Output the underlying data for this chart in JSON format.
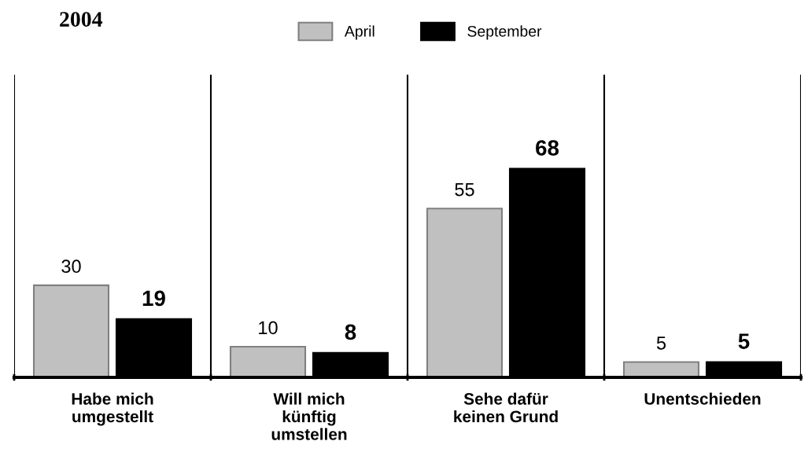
{
  "chart_data": {
    "type": "bar",
    "title": "2004",
    "categories": [
      "Habe mich\numgestellt",
      "Will mich\nkünftig\numstellen",
      "Sehe dafür\nkeinen Grund",
      "Unentschieden"
    ],
    "series": [
      {
        "name": "April",
        "color": "#c0c0c0",
        "values": [
          30,
          10,
          55,
          5
        ]
      },
      {
        "name": "September",
        "color": "#000000",
        "values": [
          19,
          8,
          68,
          5
        ]
      }
    ],
    "data_labels": true,
    "grid": "x",
    "legend": "top"
  }
}
